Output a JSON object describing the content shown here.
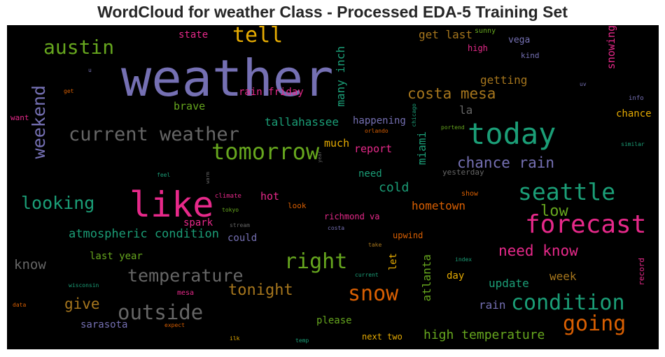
{
  "title": "WordCloud for weather Class - Processed EDA-5 Training Set",
  "palette": {
    "background": "#000000",
    "purple": "#7570b3",
    "teal": "#1b9e77",
    "pink": "#e7298a",
    "orange": "#d95f02",
    "green": "#66a61e",
    "gold": "#e6ab02",
    "brown": "#a6761d",
    "gray": "#666666"
  },
  "words": [
    {
      "text": "weather",
      "color": "#7570b3"
    },
    {
      "text": "like",
      "color": "#e7298a"
    },
    {
      "text": "today",
      "color": "#1b9e77"
    },
    {
      "text": "forecast",
      "color": "#e7298a"
    },
    {
      "text": "tomorrow",
      "color": "#66a61e"
    },
    {
      "text": "current weather",
      "color": "#666666"
    },
    {
      "text": "seattle",
      "color": "#1b9e77"
    },
    {
      "text": "austin",
      "color": "#66a61e"
    },
    {
      "text": "tell",
      "color": "#e6ab02"
    },
    {
      "text": "condition",
      "color": "#1b9e77"
    },
    {
      "text": "going",
      "color": "#d95f02"
    },
    {
      "text": "snow",
      "color": "#d95f02"
    },
    {
      "text": "right",
      "color": "#66a61e"
    },
    {
      "text": "outside",
      "color": "#666666"
    },
    {
      "text": "temperature",
      "color": "#666666"
    },
    {
      "text": "weekend",
      "color": "#7570b3"
    },
    {
      "text": "looking",
      "color": "#1b9e77"
    },
    {
      "text": "chance rain",
      "color": "#7570b3"
    },
    {
      "text": "costa mesa",
      "color": "#a6761d"
    },
    {
      "text": "need know",
      "color": "#e7298a"
    },
    {
      "text": "tonight",
      "color": "#a6761d"
    },
    {
      "text": "high temperature",
      "color": "#66a61e"
    },
    {
      "text": "low",
      "color": "#66a61e"
    },
    {
      "text": "give",
      "color": "#a6761d"
    },
    {
      "text": "cold",
      "color": "#1b9e77"
    },
    {
      "text": "atmospheric condition",
      "color": "#1b9e77"
    },
    {
      "text": "know",
      "color": "#666666"
    },
    {
      "text": "many inch",
      "color": "#1b9e77"
    },
    {
      "text": "tallahassee",
      "color": "#1b9e77"
    },
    {
      "text": "get last",
      "color": "#a6761d"
    },
    {
      "text": "getting",
      "color": "#a6761d"
    },
    {
      "text": "update",
      "color": "#1b9e77"
    },
    {
      "text": "rain",
      "color": "#7570b3"
    },
    {
      "text": "week",
      "color": "#a6761d"
    },
    {
      "text": "miami",
      "color": "#1b9e77"
    },
    {
      "text": "atlanta",
      "color": "#66a61e"
    },
    {
      "text": "hometown",
      "color": "#d95f02"
    },
    {
      "text": "snowing",
      "color": "#e7298a"
    },
    {
      "text": "la",
      "color": "#666666"
    },
    {
      "text": "much",
      "color": "#e6ab02"
    },
    {
      "text": "report",
      "color": "#e7298a"
    },
    {
      "text": "happening",
      "color": "#7570b3"
    },
    {
      "text": "brave",
      "color": "#66a61e"
    },
    {
      "text": "rain friday",
      "color": "#e7298a"
    },
    {
      "text": "state",
      "color": "#e7298a"
    },
    {
      "text": "vega",
      "color": "#7570b3"
    },
    {
      "text": "hot",
      "color": "#e7298a"
    },
    {
      "text": "spark",
      "color": "#e7298a"
    },
    {
      "text": "sarasota",
      "color": "#7570b3"
    },
    {
      "text": "let",
      "color": "#e6ab02"
    },
    {
      "text": "last year",
      "color": "#66a61e"
    },
    {
      "text": "please",
      "color": "#66a61e"
    },
    {
      "text": "chance",
      "color": "#e6ab02"
    },
    {
      "text": "need",
      "color": "#1b9e77"
    },
    {
      "text": "could",
      "color": "#7570b3"
    },
    {
      "text": "day",
      "color": "#e6ab02"
    },
    {
      "text": "richmond va",
      "color": "#e7298a"
    },
    {
      "text": "upwind",
      "color": "#d95f02"
    },
    {
      "text": "next two",
      "color": "#e6ab02"
    },
    {
      "text": "high",
      "color": "#e7298a"
    },
    {
      "text": "kind",
      "color": "#7570b3"
    },
    {
      "text": "sunny",
      "color": "#66a61e"
    },
    {
      "text": "yesterday",
      "color": "#666666"
    },
    {
      "text": "look",
      "color": "#d95f02"
    },
    {
      "text": "show",
      "color": "#d95f02"
    },
    {
      "text": "mesa",
      "color": "#e7298a"
    },
    {
      "text": "want",
      "color": "#e7298a"
    },
    {
      "text": "record",
      "color": "#e7298a"
    },
    {
      "text": "info",
      "color": "#7570b3"
    },
    {
      "text": "similar",
      "color": "#1b9e77"
    },
    {
      "text": "portend",
      "color": "#66a61e"
    },
    {
      "text": "orlando",
      "color": "#d95f02"
    },
    {
      "text": "chicago",
      "color": "#1b9e77"
    },
    {
      "text": "year",
      "color": "#666666"
    },
    {
      "text": "warm",
      "color": "#666666"
    },
    {
      "text": "feel",
      "color": "#1b9e77"
    },
    {
      "text": "climate",
      "color": "#e7298a"
    },
    {
      "text": "tokyo",
      "color": "#66a61e"
    },
    {
      "text": "stream",
      "color": "#666666"
    },
    {
      "text": "costa",
      "color": "#7570b3"
    },
    {
      "text": "take",
      "color": "#a6761d"
    },
    {
      "text": "current",
      "color": "#1b9e77"
    },
    {
      "text": "index",
      "color": "#1b9e77"
    },
    {
      "text": "wisconsin",
      "color": "#1b9e77"
    },
    {
      "text": "data",
      "color": "#d95f02"
    },
    {
      "text": "expect",
      "color": "#d95f02"
    },
    {
      "text": "ilk",
      "color": "#e6ab02"
    },
    {
      "text": "temp",
      "color": "#1b9e77"
    },
    {
      "text": "uv",
      "color": "#7570b3"
    },
    {
      "text": "u",
      "color": "#7570b3"
    },
    {
      "text": "get",
      "color": "#d95f02"
    }
  ]
}
